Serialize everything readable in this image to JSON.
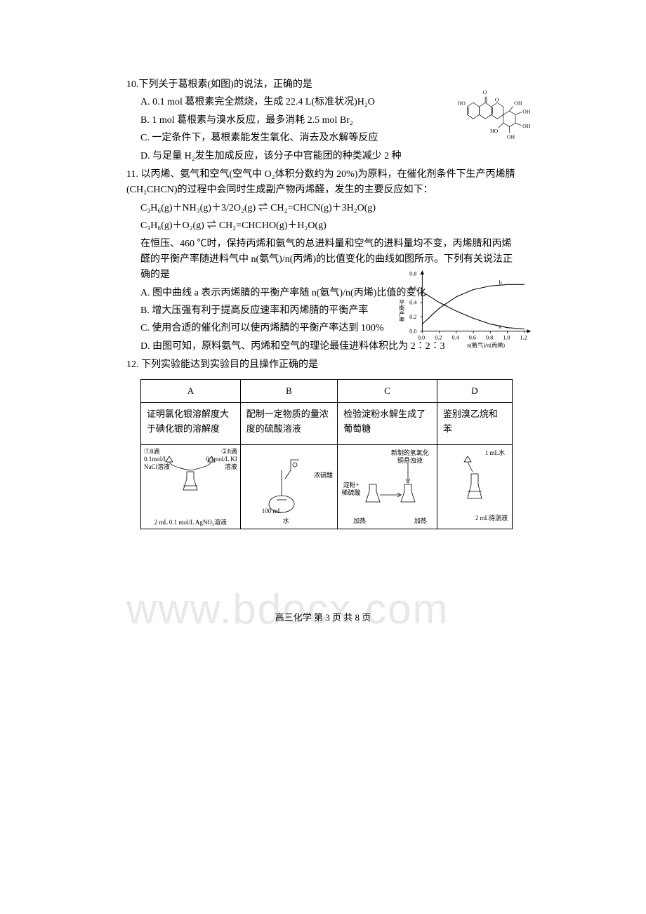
{
  "q10": {
    "stem": "10.下列关于葛根素(如图)的说法，正确的是",
    "options": {
      "A": "A. 0.1 mol 葛根素完全燃烧，生成 22.4 L(标准状况)H₂O",
      "B": "B. 1 mol 葛根素与溴水反应，最多消耗 2.5 mol Br₂",
      "C": "C. 一定条件下，葛根素能发生氧化、消去及水解等反应",
      "D": "D. 与足量 H₂发生加成反应，该分子中官能团的种类减少 2 种"
    },
    "molecule": {
      "labels": [
        "HO",
        "O",
        "O",
        "OH",
        "OH",
        "HO",
        "OH",
        "OH"
      ],
      "label_fontsize": 9,
      "stroke_color": "#000000",
      "stroke_width": 0.8
    }
  },
  "q11": {
    "stem": "11. 以丙烯、氨气和空气(空气中 O₂体积分数约为 20%)为原料，在催化剂条件下生产丙烯腈(CH₂CHCN)的过程中会同时生成副产物丙烯醛，发生的主要反应如下：",
    "eq1": "C₃H₆(g)＋NH₃(g)＋3/2O₂(g) ⇌ CH₂=CHCN(g)＋3H₂O(g)",
    "eq2": "C₃H₆(g)＋O₂(g) ⇌ CH₂=CHCHO(g)＋H₂O(g)",
    "cond": "在恒压、460 ℃时，保持丙烯和氨气的总进料量和空气的进料量均不变，丙烯腈和丙烯醛的平衡产率随进料气中 n(氨气)/n(丙烯)的比值变化的曲线如图所示。下列有关说法正确的是",
    "options": {
      "A": "A. 图中曲线 a 表示丙烯腈的平衡产率随 n(氨气)/n(丙烯)比值的变化",
      "B": "B. 增大压强有利于提高反应速率和丙烯腈的平衡产率",
      "C": "C. 使用合适的催化剂可以使丙烯腈的平衡产率达到 100%",
      "D": "D. 由图可知，原料氨气、丙烯和空气的理论最佳进料体积比为 2∶2∶3"
    },
    "chart": {
      "ylabel": "平衡产率",
      "xlabel": "n(氨气)/n(丙烯)",
      "ylim": [
        0.0,
        0.8
      ],
      "ytick_step": 0.2,
      "xlim": [
        0.0,
        1.2
      ],
      "xtick_step": 0.2,
      "xticks": [
        "0.0",
        "0.2",
        "0.4",
        "0.6",
        "0.8",
        "1.0",
        "1.2"
      ],
      "yticks": [
        "0.0",
        "0.2",
        "0.4",
        "0.6",
        "0.8"
      ],
      "series": {
        "a": {
          "label": "a",
          "points": [
            [
              0.0,
              0.55
            ],
            [
              0.2,
              0.4
            ],
            [
              0.4,
              0.28
            ],
            [
              0.6,
              0.18
            ],
            [
              0.8,
              0.1
            ],
            [
              1.0,
              0.05
            ],
            [
              1.2,
              0.03
            ]
          ]
        },
        "b": {
          "label": "b",
          "points": [
            [
              0.0,
              0.1
            ],
            [
              0.2,
              0.32
            ],
            [
              0.4,
              0.48
            ],
            [
              0.6,
              0.58
            ],
            [
              0.8,
              0.63
            ],
            [
              1.0,
              0.65
            ],
            [
              1.2,
              0.65
            ]
          ]
        }
      },
      "line_color": "#000000",
      "line_width": 1.2,
      "axis_color": "#000000",
      "font_size": 9,
      "label_fontsize": 11
    }
  },
  "q12": {
    "stem": "12. 下列实验能达到实验目的且操作正确的是",
    "table": {
      "headers": [
        "A",
        "B",
        "C",
        "D"
      ],
      "descriptions": [
        "证明氯化银溶解度大于碘化银的溶解度",
        "配制一定物质的量浓度的硫酸溶液",
        "检验淀粉水解生成了葡萄糖",
        "鉴别溴乙烷和苯"
      ],
      "figures": {
        "A": {
          "top_left": "①8滴 0.1mol/L NaCl溶液",
          "top_right": "②8滴 0.1mol/L KI溶液",
          "bottom": "2 mL 0.1 mol/L AgNO₃溶液"
        },
        "B": {
          "label_right": "浓硫酸",
          "label_bottom": "水",
          "vessel": "100 mL"
        },
        "C": {
          "top": "新制的氢氧化铜悬浊液",
          "left": "稀硫酸",
          "mid": "淀粉+",
          "bottom_left": "加热",
          "bottom_right": "加热"
        },
        "D": {
          "top": "1 mL水",
          "bottom": "2 mL待测液"
        }
      }
    }
  },
  "footer": "高三化学  第 3 页  共 8 页",
  "watermark": "www.bdocx.com",
  "colors": {
    "text": "#000000",
    "watermark": "#e8e8e8",
    "background": "#ffffff",
    "border": "#000000"
  }
}
